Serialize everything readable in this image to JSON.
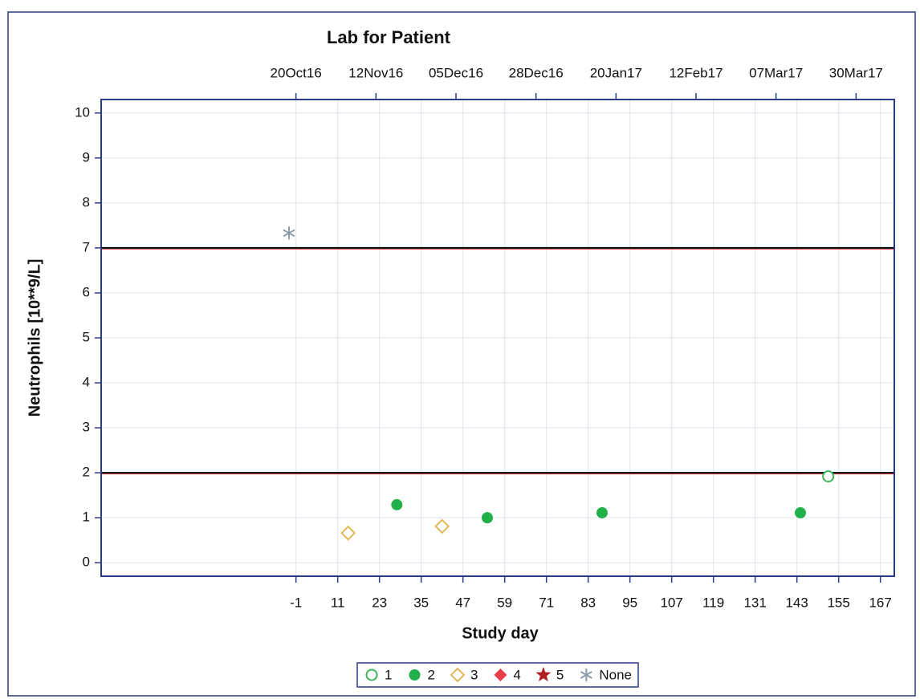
{
  "chart_data": {
    "type": "scatter",
    "title": "Lab for Patient",
    "x_label": "Study day",
    "y_label": "Neutrophils [10**9/L]",
    "xlim": [
      -57,
      171
    ],
    "xticks": [
      -1,
      11,
      23,
      35,
      47,
      59,
      71,
      83,
      95,
      107,
      119,
      131,
      143,
      155,
      167
    ],
    "x2ticks": [
      {
        "value": -1,
        "label": "20Oct16"
      },
      {
        "value": 22,
        "label": "12Nov16"
      },
      {
        "value": 45,
        "label": "05Dec16"
      },
      {
        "value": 68,
        "label": "28Dec16"
      },
      {
        "value": 91,
        "label": "20Jan17"
      },
      {
        "value": 114,
        "label": "12Feb17"
      },
      {
        "value": 137,
        "label": "07Mar17"
      },
      {
        "value": 160,
        "label": "30Mar17"
      }
    ],
    "ylim": [
      -0.3,
      10.3
    ],
    "yticks": [
      0,
      1,
      2,
      3,
      4,
      5,
      6,
      7,
      8,
      9,
      10
    ],
    "grid": true,
    "reference_lines": [
      7,
      2
    ],
    "legend": "bottom",
    "series": [
      {
        "name": "1",
        "color": "#3cb45a",
        "marker": "circle-open",
        "x": [
          152
        ],
        "values": [
          1.92
        ]
      },
      {
        "name": "2",
        "color": "#22b04a",
        "marker": "circle",
        "x": [
          28,
          54,
          87,
          144
        ],
        "values": [
          1.29,
          1.0,
          1.11,
          1.11
        ]
      },
      {
        "name": "3",
        "color": "#e3b85a",
        "marker": "diamond-open",
        "x": [
          14,
          41
        ],
        "values": [
          0.66,
          0.81
        ]
      },
      {
        "name": "4",
        "color": "#e8404a",
        "marker": "diamond",
        "x": [],
        "values": []
      },
      {
        "name": "5",
        "color": "#b02020",
        "marker": "star",
        "x": [],
        "values": []
      },
      {
        "name": "None",
        "color": "#8a9aa8",
        "marker": "asterisk",
        "x": [
          -3
        ],
        "values": [
          7.33
        ]
      }
    ]
  }
}
